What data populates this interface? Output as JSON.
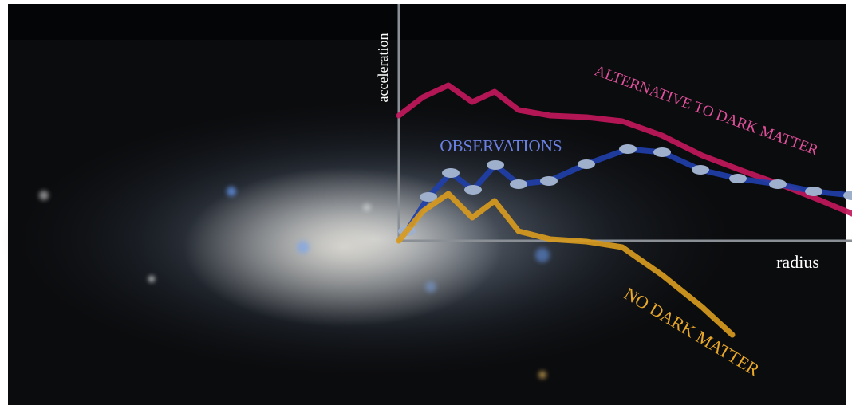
{
  "chart_data": {
    "type": "line",
    "xlabel": "radius",
    "ylabel": "acceleration",
    "xlim": [
      0,
      56.8
    ],
    "ylim": [
      -21.1,
      29.7
    ],
    "series": [
      {
        "name": "ALTERNATIVE TO DARK MATTER",
        "color": "#c2185b",
        "x": [
          0,
          3,
          6.2,
          9.2,
          12,
          15,
          19,
          23.5,
          28,
          33,
          38,
          43,
          48,
          53,
          56.8
        ],
        "values": [
          15.7,
          18,
          19.5,
          17.4,
          18.7,
          16.4,
          15.7,
          15.5,
          15,
          13.2,
          10.7,
          8.8,
          7,
          5,
          3.4
        ]
      },
      {
        "name": "OBSERVATIONS",
        "color": "#1f3fa8",
        "markers": true,
        "marker_color": "#9fb0cc",
        "x": [
          1,
          3.7,
          6.5,
          9.3,
          12.1,
          15,
          18.8,
          23.5,
          28.7,
          33,
          37.8,
          42.5,
          47.5,
          52,
          56.8
        ],
        "values": [
          1.2,
          5.5,
          8.5,
          6.4,
          9.5,
          7.1,
          7.5,
          9.6,
          11.5,
          11.1,
          8.9,
          7.8,
          7.1,
          6.2,
          5.7
        ]
      },
      {
        "name": "NO DARK MATTER",
        "color": "#d79a1e",
        "x": [
          0,
          3,
          6.2,
          9.2,
          12,
          15,
          19,
          23.5,
          28,
          33,
          38,
          41.8
        ],
        "values": [
          0,
          3.7,
          5.9,
          2.9,
          5,
          1.2,
          0.2,
          -0.1,
          -0.8,
          -4.3,
          -8.3,
          -11.8
        ]
      }
    ]
  }
}
